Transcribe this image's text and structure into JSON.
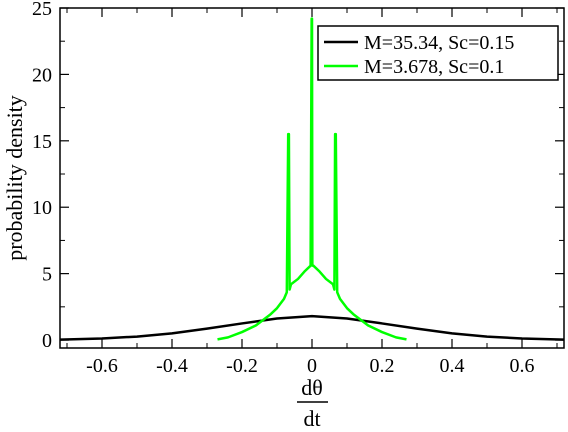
{
  "chart_data": {
    "type": "line",
    "xlabel_num": "dθ",
    "xlabel_den": "dt",
    "ylabel": "probability density",
    "xlim": [
      -0.72,
      0.72
    ],
    "ylim": [
      -0.6,
      25
    ],
    "x_ticks": [
      -0.6,
      -0.4,
      -0.2,
      0,
      0.2,
      0.4,
      0.6
    ],
    "x_tick_labels": [
      "-0.6",
      "-0.4",
      "-0.2",
      "0",
      "0.2",
      "0.4",
      "0.6"
    ],
    "y_ticks": [
      0,
      5,
      10,
      15,
      20,
      25
    ],
    "y_tick_labels": [
      "0",
      "5",
      "10",
      "15",
      "20",
      "25"
    ],
    "grid": false,
    "legend_position": "top-right",
    "series": [
      {
        "name": "M=35.34, Sc=0.15",
        "color": "#000000",
        "x": [
          -0.72,
          -0.6,
          -0.5,
          -0.4,
          -0.3,
          -0.2,
          -0.1,
          0,
          0.1,
          0.2,
          0.3,
          0.4,
          0.5,
          0.6,
          0.72
        ],
        "y": [
          0.03,
          0.12,
          0.26,
          0.5,
          0.86,
          1.25,
          1.62,
          1.8,
          1.62,
          1.25,
          0.86,
          0.5,
          0.26,
          0.12,
          0.03
        ]
      },
      {
        "name": "M=3.678, Sc=0.1",
        "color": "#00ff00",
        "x": [
          -0.27,
          -0.24,
          -0.2,
          -0.16,
          -0.12,
          -0.1,
          -0.08,
          -0.072,
          -0.068,
          -0.066,
          -0.064,
          -0.06,
          -0.04,
          -0.02,
          -0.004,
          -0.001,
          0,
          0.001,
          0.004,
          0.02,
          0.04,
          0.06,
          0.064,
          0.066,
          0.068,
          0.072,
          0.08,
          0.1,
          0.12,
          0.16,
          0.2,
          0.24,
          0.27
        ],
        "y": [
          0.05,
          0.2,
          0.6,
          1.1,
          1.9,
          2.4,
          3.1,
          3.6,
          15.5,
          15.5,
          3.8,
          4.2,
          4.6,
          5.2,
          5.6,
          24.2,
          24.2,
          5.6,
          5.6,
          5.2,
          4.6,
          4.2,
          3.8,
          15.5,
          15.5,
          3.6,
          3.1,
          2.4,
          1.9,
          1.1,
          0.6,
          0.2,
          0.05
        ]
      }
    ]
  }
}
